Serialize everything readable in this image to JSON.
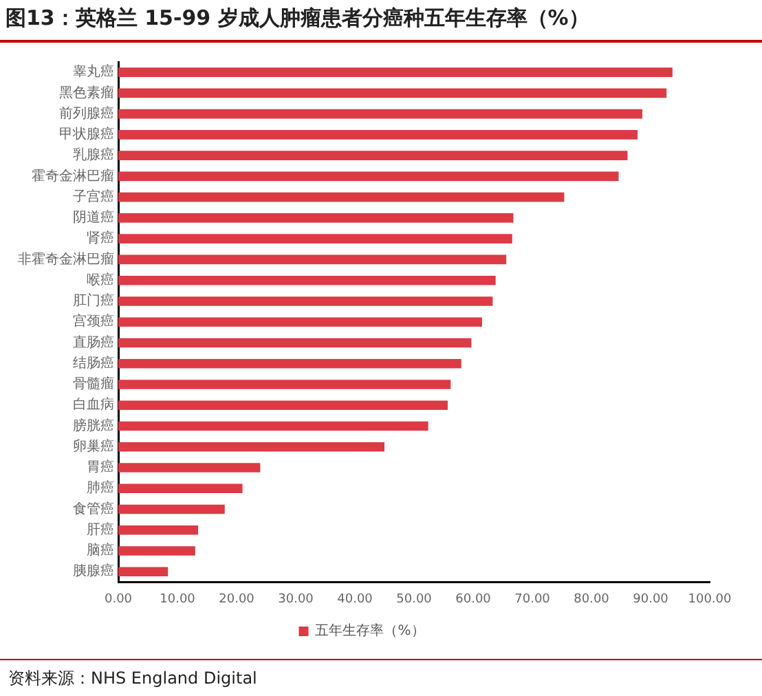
{
  "chart_data": {
    "type": "bar",
    "orientation": "horizontal",
    "title": "图13：英格兰 15-99 岁成人肿瘤患者分癌种五年生存率（%）",
    "categories": [
      "睾丸癌",
      "黑色素瘤",
      "前列腺癌",
      "甲状腺癌",
      "乳腺癌",
      "霍奇金淋巴瘤",
      "子宫癌",
      "阴道癌",
      "肾癌",
      "非霍奇金淋巴瘤",
      "喉癌",
      "肛门癌",
      "宫颈癌",
      "直肠癌",
      "结肠癌",
      "骨髓瘤",
      "白血病",
      "膀胱癌",
      "卵巢癌",
      "胃癌",
      "肺癌",
      "食管癌",
      "肝癌",
      "脑癌",
      "胰腺癌"
    ],
    "series": [
      {
        "name": "五年生存率（%）",
        "color": "#dc3a44",
        "values": [
          93.7,
          92.7,
          88.6,
          87.8,
          86.1,
          84.6,
          75.4,
          66.8,
          66.6,
          65.6,
          63.8,
          63.3,
          61.5,
          59.7,
          58.0,
          56.2,
          55.7,
          52.4,
          45.0,
          24.0,
          21.0,
          18.0,
          13.5,
          13.0,
          8.4
        ]
      }
    ],
    "xlim": [
      0,
      100
    ],
    "xticks": [
      {
        "value": 0,
        "label": "0.00"
      },
      {
        "value": 10,
        "label": "10.00"
      },
      {
        "value": 20,
        "label": "20.00"
      },
      {
        "value": 30,
        "label": "30.00"
      },
      {
        "value": 40,
        "label": "40.00"
      },
      {
        "value": 50,
        "label": "50.00"
      },
      {
        "value": 60,
        "label": "60.00"
      },
      {
        "value": 70,
        "label": "70.00"
      },
      {
        "value": 80,
        "label": "80.00"
      },
      {
        "value": 90,
        "label": "90.00"
      },
      {
        "value": 100,
        "label": "100.00"
      }
    ],
    "grid": false,
    "legend": "bottom",
    "annotations": [
      "资料来源：NHS England Digital"
    ]
  }
}
